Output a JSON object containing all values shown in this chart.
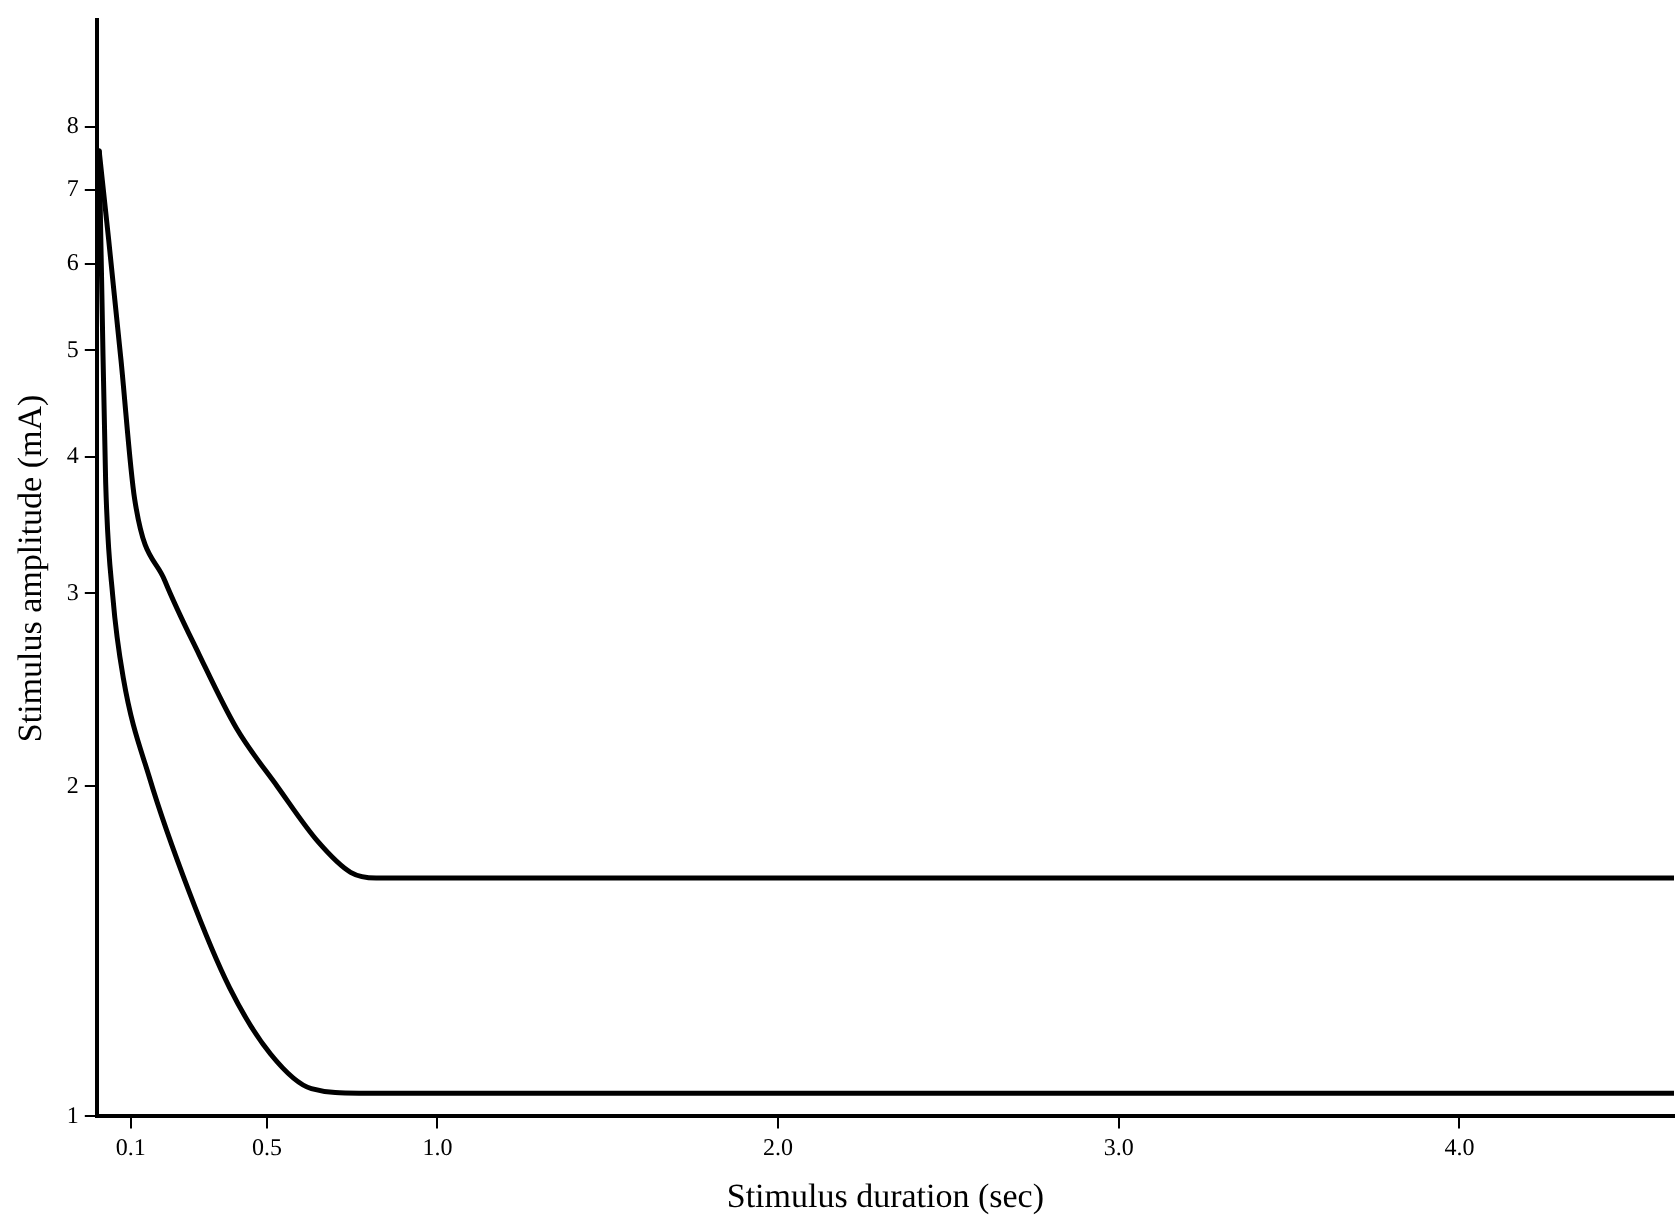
{
  "chart_data": {
    "type": "line",
    "xlabel": "Stimulus duration (sec)",
    "ylabel": "Stimulus amplitude (mA)",
    "log": "y",
    "grid": false,
    "legend": false,
    "marker": "none",
    "line_style": "solid",
    "xlim": [
      0,
      4.63
    ],
    "xticks": [
      0.1,
      0.5,
      {
        "value": 1,
        "label": "1.0"
      },
      {
        "value": 2,
        "label": "2.0"
      },
      {
        "value": 3,
        "label": "3.0"
      },
      {
        "value": 4,
        "label": "4.0"
      }
    ],
    "ylim": [
      1,
      10
    ],
    "yticks": [
      1,
      2,
      3,
      4,
      5,
      6,
      7,
      8
    ],
    "series": [
      {
        "color": "#000000",
        "x": [
          0.007,
          0.035,
          0.071,
          0.111,
          0.2,
          0.3,
          0.41,
          0.53,
          0.65,
          0.745,
          0.82,
          4.63
        ],
        "values": [
          7.6,
          6.3,
          4.9,
          3.66,
          3.08,
          2.64,
          2.26,
          2.0,
          1.78,
          1.67,
          1.65,
          1.65
        ]
      },
      {
        "color": "#000000",
        "x": [
          0.007,
          0.015,
          0.026,
          0.047,
          0.078,
          0.154,
          0.272,
          0.39,
          0.51,
          0.63,
          0.77,
          4.63
        ],
        "values": [
          7.6,
          5.6,
          3.79,
          2.98,
          2.51,
          2.04,
          1.6,
          1.31,
          1.14,
          1.06,
          1.05,
          1.05
        ]
      }
    ]
  }
}
